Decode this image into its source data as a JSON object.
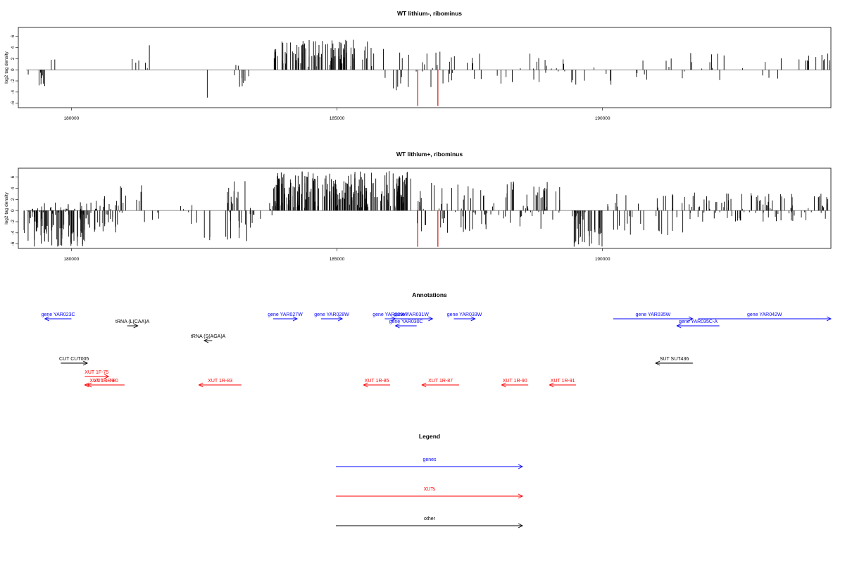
{
  "colors": {
    "gene": "#0000ff",
    "xut": "#ff0000",
    "other": "#000000",
    "highlight": "#cc0000",
    "baseline": "#808080"
  },
  "chart_data": [
    {
      "type": "bar",
      "title": "WT lithium-, ribominus",
      "ylabel": "log2 tag density",
      "xlim": [
        179000,
        194300
      ],
      "ylim": [
        -6.8,
        7.6
      ],
      "xticks": [
        180000,
        185000,
        190000
      ],
      "xtick_labels": [
        "180000",
        "185000",
        "190000"
      ],
      "yticks": [
        -6,
        -4,
        -2,
        0,
        2,
        4,
        6
      ],
      "ytick_labels": [
        "-6",
        "-4",
        "-2",
        "0",
        "2",
        "4",
        "6"
      ],
      "grid": false,
      "highlight_x": [
        186520,
        186900
      ],
      "highlight_value": -6.5,
      "segments": [
        {
          "x": [
            179100,
            179600
          ],
          "n": 8,
          "lo": -3.5,
          "hi": -0.5
        },
        {
          "x": [
            179600,
            179700
          ],
          "n": 2,
          "lo": 1.0,
          "hi": 2.0
        },
        {
          "x": [
            181100,
            181500
          ],
          "n": 6,
          "lo": -1.0,
          "hi": 5.2
        },
        {
          "x": [
            182550,
            182600
          ],
          "n": 1,
          "lo": -5.0,
          "hi": -5.0
        },
        {
          "x": [
            182900,
            183350
          ],
          "n": 10,
          "lo": -3.5,
          "hi": 1.5
        },
        {
          "x": [
            183800,
            185700
          ],
          "n": 95,
          "lo": 0.5,
          "hi": 5.4
        },
        {
          "x": [
            185800,
            187500
          ],
          "n": 30,
          "lo": -4.0,
          "hi": 3.8
        },
        {
          "x": [
            187500,
            189300
          ],
          "n": 25,
          "lo": -2.5,
          "hi": 3.0
        },
        {
          "x": [
            189300,
            190600
          ],
          "n": 8,
          "lo": -3.0,
          "hi": 1.0
        },
        {
          "x": [
            190600,
            193600
          ],
          "n": 25,
          "lo": -2.0,
          "hi": 3.2
        },
        {
          "x": [
            193600,
            194300
          ],
          "n": 12,
          "lo": 0.5,
          "hi": 3.0
        }
      ]
    },
    {
      "type": "bar",
      "title": "WT lithium+, ribominus",
      "ylabel": "log2 tag density",
      "xlim": [
        179000,
        194300
      ],
      "ylim": [
        -6.8,
        7.6
      ],
      "xticks": [
        180000,
        185000,
        190000
      ],
      "xtick_labels": [
        "180000",
        "185000",
        "190000"
      ],
      "yticks": [
        -6,
        -4,
        -2,
        0,
        2,
        4,
        6
      ],
      "ytick_labels": [
        "-6",
        "-4",
        "-2",
        "0",
        "2",
        "4",
        "6"
      ],
      "grid": false,
      "highlight_x": [
        186520,
        186900
      ],
      "highlight_value": -6.5,
      "segments": [
        {
          "x": [
            179100,
            180300
          ],
          "n": 110,
          "lo": -6.5,
          "hi": 1.5
        },
        {
          "x": [
            180300,
            180900
          ],
          "n": 35,
          "lo": -4.0,
          "hi": 2.8
        },
        {
          "x": [
            180900,
            181600
          ],
          "n": 12,
          "lo": -2.5,
          "hi": 5.0
        },
        {
          "x": [
            181600,
            182500
          ],
          "n": 8,
          "lo": -3.0,
          "hi": 1.5
        },
        {
          "x": [
            182500,
            182700
          ],
          "n": 3,
          "lo": -5.5,
          "hi": 0.5
        },
        {
          "x": [
            182900,
            183450
          ],
          "n": 30,
          "lo": -5.5,
          "hi": 6.5
        },
        {
          "x": [
            183500,
            183800
          ],
          "n": 5,
          "lo": -2.0,
          "hi": 1.5
        },
        {
          "x": [
            183800,
            186400
          ],
          "n": 220,
          "lo": 0.5,
          "hi": 7.2
        },
        {
          "x": [
            186400,
            187800
          ],
          "n": 50,
          "lo": -4.0,
          "hi": 5.0
        },
        {
          "x": [
            187800,
            189200
          ],
          "n": 50,
          "lo": -3.5,
          "hi": 6.0
        },
        {
          "x": [
            189400,
            190000
          ],
          "n": 40,
          "lo": -6.5,
          "hi": 0.8
        },
        {
          "x": [
            190000,
            191600
          ],
          "n": 35,
          "lo": -4.5,
          "hi": 3.0
        },
        {
          "x": [
            191600,
            194300
          ],
          "n": 95,
          "lo": -2.0,
          "hi": 3.3
        }
      ]
    },
    {
      "type": "annotation-track",
      "title": "Annotations",
      "xlim": [
        179000,
        194300
      ],
      "features": [
        {
          "label": "gene YAR023C",
          "category": "gene",
          "start": 179500,
          "end": 180000,
          "strand": "-",
          "level": 0
        },
        {
          "label": "tRNA (L(CAA)A",
          "category": "other",
          "start": 181050,
          "end": 181250,
          "strand": "+",
          "level": 1
        },
        {
          "label": "tRNA (S(AGA)A",
          "category": "other",
          "start": 182500,
          "end": 182650,
          "strand": "-",
          "level": 2
        },
        {
          "label": "CUT CUT005",
          "category": "other",
          "start": 179800,
          "end": 180300,
          "strand": "+",
          "level": 3
        },
        {
          "label": "XUT 1F-75",
          "category": "xut",
          "start": 180250,
          "end": 180700,
          "strand": "+",
          "level": 4
        },
        {
          "label": "XUT 1R-79",
          "category": "xut",
          "start": 180250,
          "end": 180900,
          "strand": "-",
          "level": 5
        },
        {
          "label": "XUT 1R-80",
          "category": "xut",
          "start": 180300,
          "end": 181000,
          "strand": "-",
          "level": 5
        },
        {
          "label": "XUT 1R-83",
          "category": "xut",
          "start": 182400,
          "end": 183200,
          "strand": "-",
          "level": 5
        },
        {
          "label": "gene YAR027W",
          "category": "gene",
          "start": 183800,
          "end": 184250,
          "strand": "+",
          "level": 0
        },
        {
          "label": "gene YAR028W",
          "category": "gene",
          "start": 184700,
          "end": 185100,
          "strand": "+",
          "level": 0
        },
        {
          "label": "gene YAR029W",
          "category": "gene",
          "start": 185900,
          "end": 186100,
          "strand": "+",
          "level": 0
        },
        {
          "label": "gene YAR030C",
          "category": "gene",
          "start": 186100,
          "end": 186500,
          "strand": "-",
          "level": 1
        },
        {
          "label": "gene YAR031W",
          "category": "gene",
          "start": 186000,
          "end": 186800,
          "strand": "+",
          "level": 0
        },
        {
          "label": "gene YAR033W",
          "category": "gene",
          "start": 187200,
          "end": 187600,
          "strand": "+",
          "level": 0
        },
        {
          "label": "gene YAR035W",
          "category": "gene",
          "start": 190200,
          "end": 191700,
          "strand": "+",
          "level": 0
        },
        {
          "label": "gene YAR035C-A",
          "category": "gene",
          "start": 191400,
          "end": 192200,
          "strand": "-",
          "level": 1
        },
        {
          "label": "gene YAR042W",
          "category": "gene",
          "start": 191800,
          "end": 194300,
          "strand": "+",
          "level": 0
        },
        {
          "label": "SUT SUT436",
          "category": "other",
          "start": 191000,
          "end": 191700,
          "strand": "-",
          "level": 3
        },
        {
          "label": "XUT 1R-85",
          "category": "xut",
          "start": 185500,
          "end": 186000,
          "strand": "-",
          "level": 5
        },
        {
          "label": "XUT 1R-87",
          "category": "xut",
          "start": 186600,
          "end": 187300,
          "strand": "-",
          "level": 5
        },
        {
          "label": "XUT 1R-90",
          "category": "xut",
          "start": 188100,
          "end": 188600,
          "strand": "-",
          "level": 5
        },
        {
          "label": "XUT 1R-91",
          "category": "xut",
          "start": 189000,
          "end": 189500,
          "strand": "-",
          "level": 5
        }
      ]
    },
    {
      "type": "legend",
      "title": "Legend",
      "entries": [
        {
          "label": "genes",
          "category": "gene"
        },
        {
          "label": "XUTs",
          "category": "xut"
        },
        {
          "label": "other",
          "category": "other"
        }
      ]
    }
  ]
}
